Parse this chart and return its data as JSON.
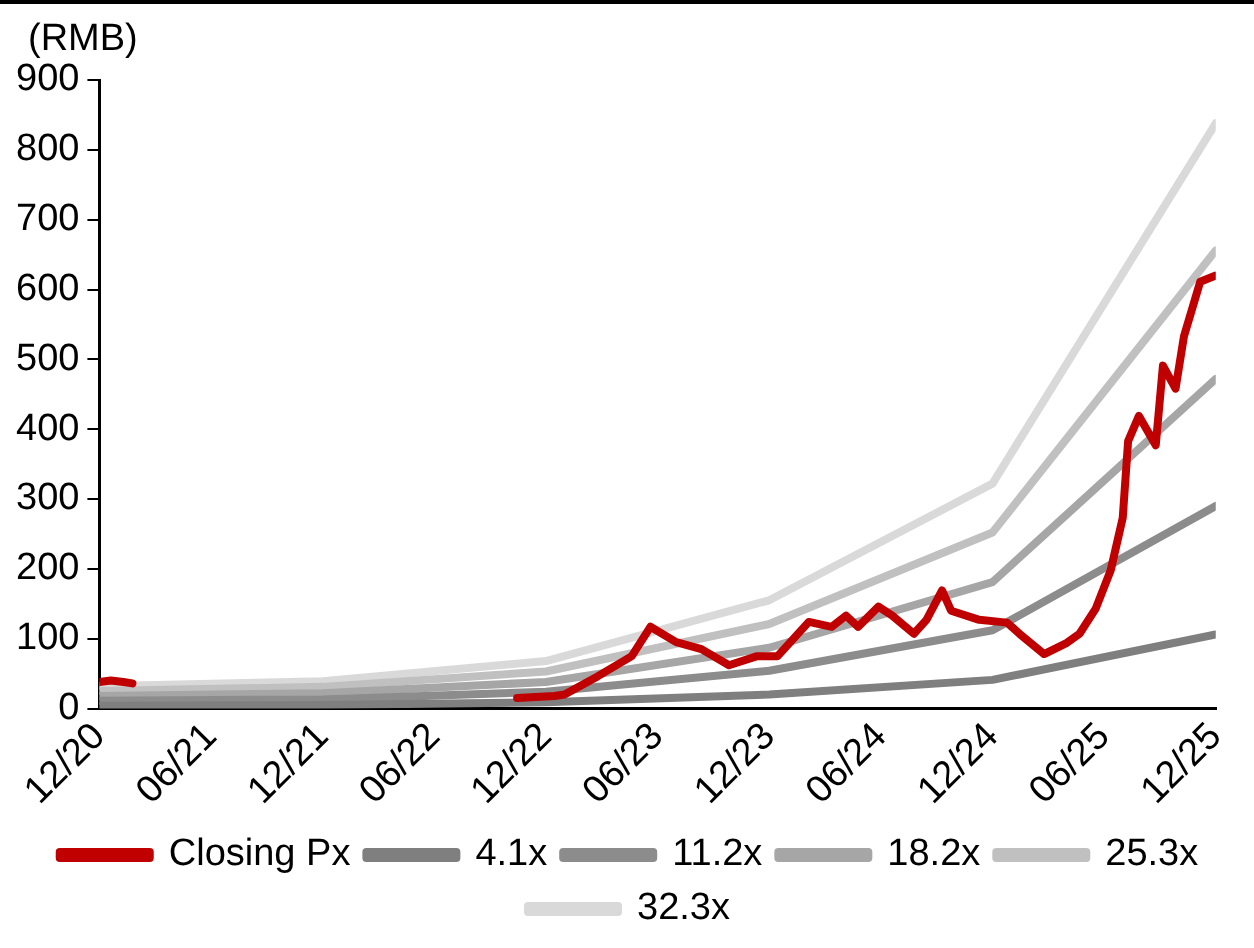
{
  "chart_data": {
    "type": "line",
    "ylabel": "(RMB)",
    "xlim": [
      "2020-12",
      "2025-12"
    ],
    "ylim": [
      0,
      900
    ],
    "xticks": [
      {
        "value": "2020-12",
        "label": "12/20"
      },
      {
        "value": "2021-06",
        "label": "06/21"
      },
      {
        "value": "2021-12",
        "label": "12/21"
      },
      {
        "value": "2022-06",
        "label": "06/22"
      },
      {
        "value": "2022-12",
        "label": "12/22"
      },
      {
        "value": "2023-06",
        "label": "06/23"
      },
      {
        "value": "2023-12",
        "label": "12/23"
      },
      {
        "value": "2024-06",
        "label": "06/24"
      },
      {
        "value": "2024-12",
        "label": "12/24"
      },
      {
        "value": "2025-06",
        "label": "06/25"
      },
      {
        "value": "2025-12",
        "label": "12/25"
      }
    ],
    "yticks": [
      0,
      100,
      200,
      300,
      400,
      500,
      600,
      700,
      800,
      900
    ],
    "grid": false,
    "legend": "bottom",
    "marker": "none",
    "line_style": "solid",
    "series": [
      {
        "name": "Closing Px",
        "color": "#c00000",
        "x": [
          "2020-12-01",
          "2020-12-20",
          "2021-01-10",
          "2021-01-25",
          "2021-02-05",
          "2022-10-15",
          "2022-12-15",
          "2023-01-01",
          "2023-02-25",
          "2023-04-20",
          "2023-05-20",
          "2023-07-01",
          "2023-08-12",
          "2023-09-27",
          "2023-11-12",
          "2023-12-15",
          "2024-02-05",
          "2024-03-12",
          "2024-04-05",
          "2024-04-25",
          "2024-05-28",
          "2024-06-20",
          "2024-07-25",
          "2024-08-15",
          "2024-09-10",
          "2024-09-25",
          "2024-11-10",
          "2024-12-25",
          "2025-01-15",
          "2025-02-25",
          "2025-04-01",
          "2025-04-22",
          "2025-05-18",
          "2025-06-12",
          "2025-07-01",
          "2025-07-10",
          "2025-07-28",
          "2025-08-25",
          "2025-09-06",
          "2025-09-27",
          "2025-10-10",
          "2025-11-06",
          "2025-12-01"
        ],
        "values": [
          38,
          40,
          38,
          36,
          null,
          15,
          18,
          20,
          46,
          75,
          117,
          95,
          85,
          62,
          75,
          75,
          124,
          117,
          133,
          117,
          146,
          133,
          107,
          127,
          169,
          140,
          127,
          123,
          107,
          78,
          94,
          107,
          143,
          198,
          273,
          383,
          419,
          377,
          491,
          458,
          533,
          611,
          620
        ]
      },
      {
        "name": "4.1x",
        "color": "#7f7f7f",
        "x": [
          "2020-12",
          "2021-12",
          "2022-12",
          "2023-12",
          "2024-12",
          "2025-12"
        ],
        "values": [
          4,
          5,
          9,
          20,
          41,
          106
        ]
      },
      {
        "name": "11.2x",
        "color": "#8c8c8c",
        "x": [
          "2020-12",
          "2021-12",
          "2022-12",
          "2023-12",
          "2024-12",
          "2025-12"
        ],
        "values": [
          11,
          13,
          24,
          54,
          112,
          290
        ]
      },
      {
        "name": "18.2x",
        "color": "#a6a6a6",
        "x": [
          "2020-12",
          "2021-12",
          "2022-12",
          "2023-12",
          "2024-12",
          "2025-12"
        ],
        "values": [
          18,
          22,
          38,
          87,
          181,
          472
        ]
      },
      {
        "name": "25.3x",
        "color": "#c0c0c0",
        "x": [
          "2020-12",
          "2021-12",
          "2022-12",
          "2023-12",
          "2024-12",
          "2025-12"
        ],
        "values": [
          25,
          31,
          53,
          121,
          252,
          656
        ]
      },
      {
        "name": "32.3x",
        "color": "#d9d9d9",
        "x": [
          "2020-12",
          "2021-12",
          "2022-12",
          "2023-12",
          "2024-12",
          "2025-12"
        ],
        "values": [
          32,
          39,
          68,
          155,
          322,
          838
        ]
      }
    ]
  }
}
